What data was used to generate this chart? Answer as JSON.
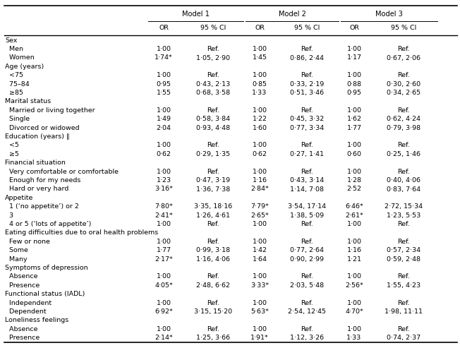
{
  "model_headers": [
    "Model 1",
    "Model 2",
    "Model 3"
  ],
  "rows": [
    [
      "Sex",
      "",
      "",
      "",
      "",
      "",
      ""
    ],
    [
      "  Men",
      "1·00",
      "Ref.",
      "1·00",
      "Ref.",
      "1·00",
      "Ref."
    ],
    [
      "  Women",
      "1·74*",
      "1·05, 2·90",
      "1·45",
      "0·86, 2·44",
      "1·17",
      "0·67, 2·06"
    ],
    [
      "Age (years)",
      "",
      "",
      "",
      "",
      "",
      ""
    ],
    [
      "  <75",
      "1·00",
      "Ref.",
      "1·00",
      "Ref.",
      "1·00",
      "Ref."
    ],
    [
      "  75–84",
      "0·95",
      "0·43, 2·13",
      "0·85",
      "0·33, 2·19",
      "0·88",
      "0·30, 2·60"
    ],
    [
      "  ≥85",
      "1·55",
      "0·68, 3·58",
      "1·33",
      "0·51, 3·46",
      "0·95",
      "0·34, 2·65"
    ],
    [
      "Marital status",
      "",
      "",
      "",
      "",
      "",
      ""
    ],
    [
      "  Married or living together",
      "1·00",
      "Ref.",
      "1·00",
      "Ref.",
      "1·00",
      "Ref."
    ],
    [
      "  Single",
      "1·49",
      "0·58, 3·84",
      "1·22",
      "0·45, 3·32",
      "1·62",
      "0·62, 4·24"
    ],
    [
      "  Divorced or widowed",
      "2·04",
      "0·93, 4·48",
      "1·60",
      "0·77, 3·34",
      "1·77",
      "0·79, 3·98"
    ],
    [
      "Education (years) ‖",
      "",
      "",
      "",
      "",
      "",
      ""
    ],
    [
      "  <5",
      "1·00",
      "Ref.",
      "1·00",
      "Ref.",
      "1·00",
      "Ref."
    ],
    [
      "  ≥5",
      "0·62",
      "0·29, 1·35",
      "0·62",
      "0·27, 1·41",
      "0·60",
      "0·25, 1·46"
    ],
    [
      "Financial situation",
      "",
      "",
      "",
      "",
      "",
      ""
    ],
    [
      "  Very comfortable or comfortable",
      "1·00",
      "Ref.",
      "1·00",
      "Ref.",
      "1·00",
      "Ref."
    ],
    [
      "  Enough for my needs",
      "1·23",
      "0·47, 3·19",
      "1·16",
      "0·43, 3·14",
      "1·28",
      "0·40, 4·06"
    ],
    [
      "  Hard or very hard",
      "3·16*",
      "1·36, 7·38",
      "2·84*",
      "1·14, 7·08",
      "2·52",
      "0·83, 7·64"
    ],
    [
      "Appetite",
      "",
      "",
      "",
      "",
      "",
      ""
    ],
    [
      "  1 (‘no appetite’) or 2",
      "7·80*",
      "3·35, 18·16",
      "7·79*",
      "3·54, 17·14",
      "6·46*",
      "2·72, 15·34"
    ],
    [
      "  3",
      "2·41*",
      "1·26, 4·61",
      "2·65*",
      "1·38, 5·09",
      "2·61*",
      "1·23, 5·53"
    ],
    [
      "  4 or 5 (‘lots of appetite’)",
      "1·00",
      "Ref.",
      "1·00",
      "Ref.",
      "1·00",
      "Ref."
    ],
    [
      "Eating difficulties due to oral health problems",
      "",
      "",
      "",
      "",
      "",
      ""
    ],
    [
      "  Few or none",
      "1·00",
      "Ref.",
      "1·00",
      "Ref.",
      "1·00",
      "Ref."
    ],
    [
      "  Some",
      "1·77",
      "0·99, 3·18",
      "1·42",
      "0·77, 2·64",
      "1·16",
      "0·57, 2·34"
    ],
    [
      "  Many",
      "2·17*",
      "1·16, 4·06",
      "1·64",
      "0·90, 2·99",
      "1·21",
      "0·59, 2·48"
    ],
    [
      "Symptoms of depression",
      "",
      "",
      "",
      "",
      "",
      ""
    ],
    [
      "  Absence",
      "1·00",
      "Ref.",
      "1·00",
      "Ref.",
      "1·00",
      "Ref."
    ],
    [
      "  Presence",
      "4·05*",
      "2·48, 6·62",
      "3·33*",
      "2·03, 5·48",
      "2·56*",
      "1·55, 4·23"
    ],
    [
      "Functional status (IADL)",
      "",
      "",
      "",
      "",
      "",
      ""
    ],
    [
      "  Independent",
      "1·00",
      "Ref.",
      "1·00",
      "Ref.",
      "1·00",
      "Ref."
    ],
    [
      "  Dependent",
      "6·92*",
      "3·15, 15·20",
      "5·63*",
      "2·54, 12·45",
      "4·70*",
      "1·98, 11·11"
    ],
    [
      "Loneliness feelings",
      "",
      "",
      "",
      "",
      "",
      ""
    ],
    [
      "  Absence",
      "1·00",
      "Ref.",
      "1·00",
      "Ref.",
      "1·00",
      "Ref."
    ],
    [
      "  Presence",
      "2·14*",
      "1·25, 3·66",
      "1·91*",
      "1·12, 3·26",
      "1·33",
      "0·74, 2·37"
    ]
  ],
  "section_rows": [
    0,
    3,
    7,
    11,
    14,
    18,
    22,
    26,
    29,
    32
  ],
  "bg_color": "#ffffff",
  "font_size": 6.8,
  "fig_width": 6.52,
  "fig_height": 4.93,
  "dpi": 100
}
